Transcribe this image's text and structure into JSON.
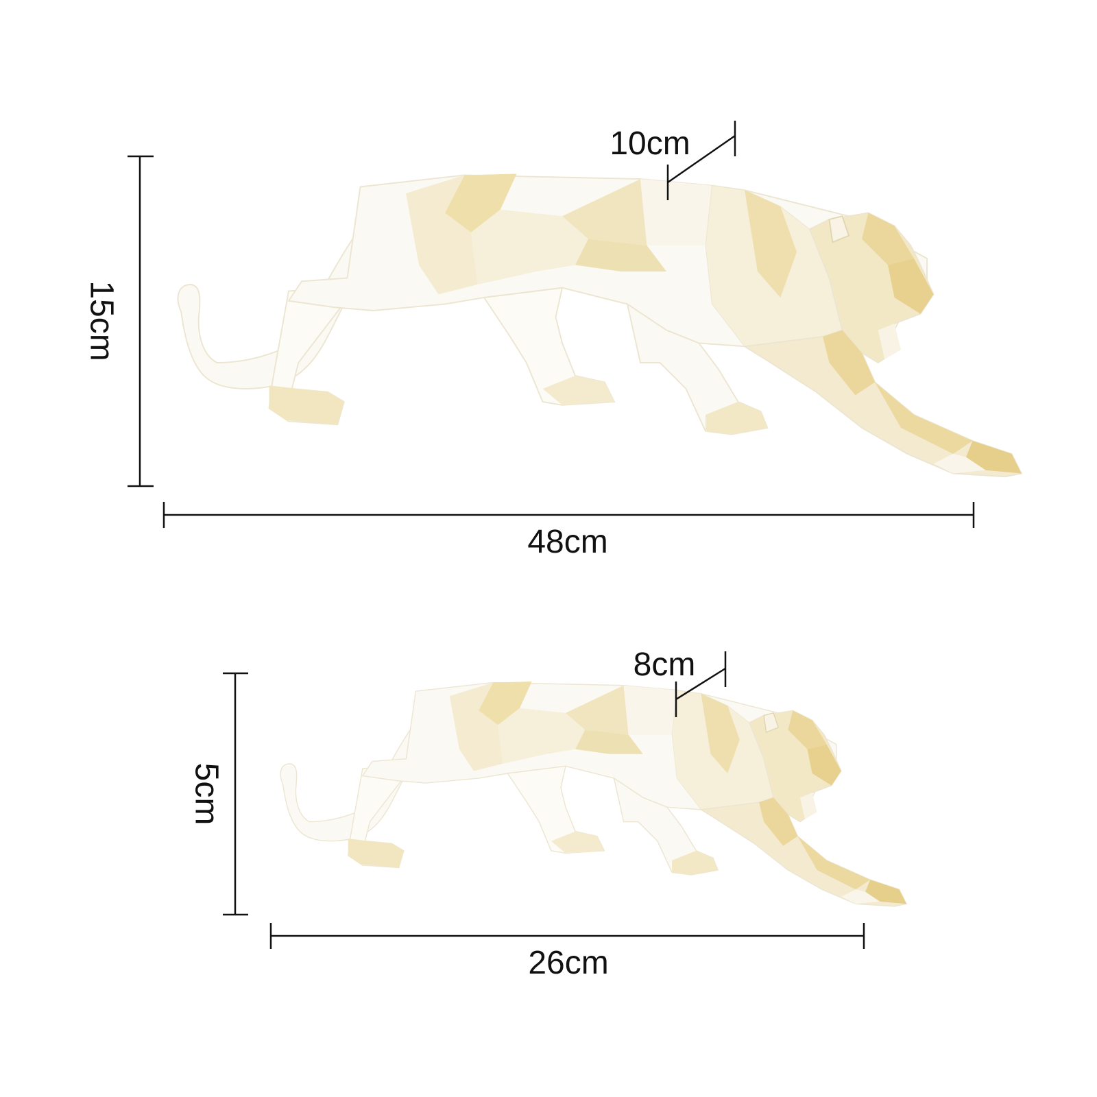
{
  "colors": {
    "background": "#ffffff",
    "line": "#111111",
    "facet_light": "#fdfcf8",
    "facet_mid": "#f6f1e2",
    "facet_warm": "#f3e7c2",
    "facet_gold": "#ecd89a"
  },
  "large": {
    "height_label": "15cm",
    "length_label": "48cm",
    "width_label": "10cm"
  },
  "small": {
    "height_label": "5cm",
    "length_label": "26cm",
    "width_label": "8cm"
  }
}
